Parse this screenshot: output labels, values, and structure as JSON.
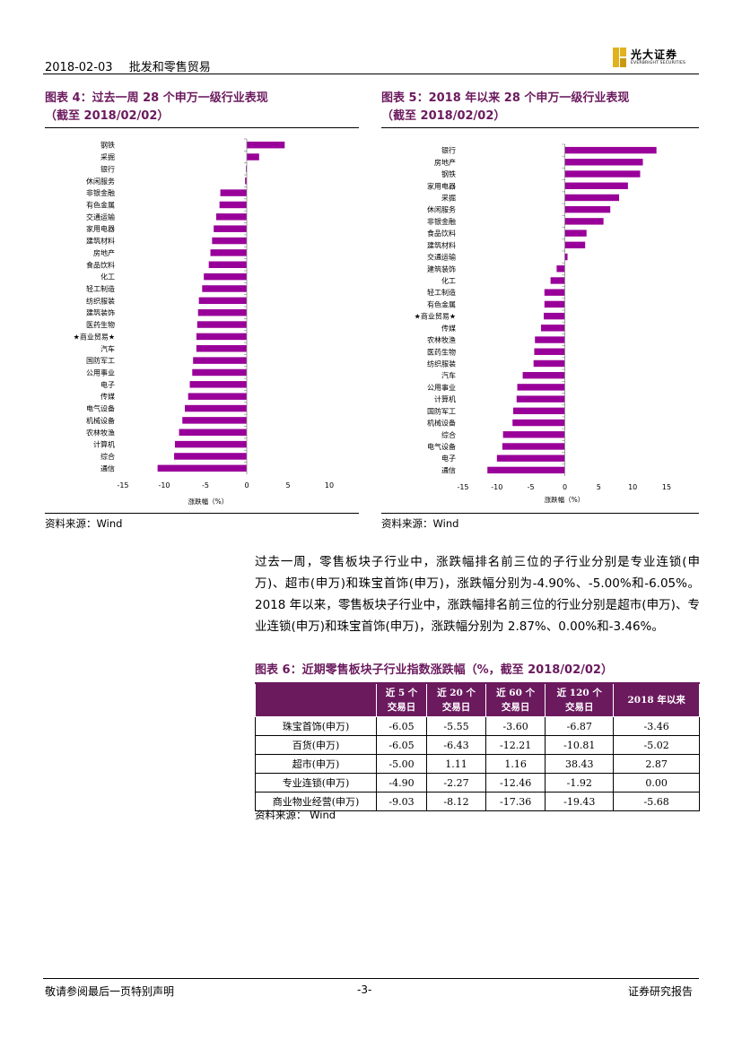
{
  "header": {
    "date": "2018-02-03",
    "sector": "批发和零售贸易",
    "logo_cn": "光大证券",
    "logo_en": "EVERBRIGHT SECURITIES"
  },
  "fig4": {
    "title_line1": "图表 4：过去一周 28 个申万一级行业表现",
    "title_line2": "（截至 2018/02/02）",
    "source": "资料来源：Wind"
  },
  "fig5": {
    "title_line1": "图表 5：2018 年以来 28 个申万一级行业表现",
    "title_line2": "（截至 2018/02/02）",
    "source": "资料来源：Wind"
  },
  "chart_data": [
    {
      "type": "bar",
      "orientation": "horizontal",
      "xlabel": "涨跌幅（%）",
      "xlim": [
        -15,
        10
      ],
      "xticks": [
        -15,
        -10,
        -5,
        0,
        5,
        10
      ],
      "color": "#990099",
      "categories": [
        "钢铁",
        "采掘",
        "银行",
        "休闲服务",
        "非银金融",
        "有色金属",
        "交通运输",
        "家用电器",
        "建筑材料",
        "房地产",
        "食品饮料",
        "化工",
        "轻工制造",
        "纺织服装",
        "建筑装饰",
        "医药生物",
        "★商业贸易★",
        "汽车",
        "国防军工",
        "公用事业",
        "电子",
        "传媒",
        "电气设备",
        "机械设备",
        "农林牧渔",
        "计算机",
        "综合",
        "通信"
      ],
      "values": [
        4.6,
        1.5,
        -0.1,
        -0.2,
        -3.2,
        -3.3,
        -3.7,
        -4.0,
        -4.2,
        -4.4,
        -4.6,
        -5.2,
        -5.4,
        -5.8,
        -5.9,
        -6.0,
        -6.1,
        -6.1,
        -6.5,
        -6.6,
        -6.9,
        -7.1,
        -7.5,
        -7.8,
        -8.2,
        -8.7,
        -8.8,
        -10.8
      ]
    },
    {
      "type": "bar",
      "orientation": "horizontal",
      "xlabel": "涨跌幅（%）",
      "xlim": [
        -15,
        15
      ],
      "xticks": [
        -15,
        -10,
        -5,
        0,
        5,
        10,
        15
      ],
      "color": "#990099",
      "categories": [
        "银行",
        "房地产",
        "钢铁",
        "家用电器",
        "采掘",
        "休闲服务",
        "非银金融",
        "食品饮料",
        "建筑材料",
        "交通运输",
        "建筑装饰",
        "化工",
        "轻工制造",
        "有色金属",
        "★商业贸易★",
        "传媒",
        "农林牧渔",
        "医药生物",
        "纺织服装",
        "汽车",
        "公用事业",
        "计算机",
        "国防军工",
        "机械设备",
        "综合",
        "电气设备",
        "电子",
        "通信"
      ],
      "values": [
        13.5,
        11.5,
        11.1,
        9.3,
        8.0,
        6.7,
        5.7,
        3.2,
        3.0,
        0.4,
        -1.2,
        -2.1,
        -3.0,
        -3.0,
        -3.1,
        -3.5,
        -4.4,
        -4.5,
        -4.6,
        -6.2,
        -7.0,
        -7.1,
        -7.6,
        -7.7,
        -9.1,
        -9.2,
        -10.0,
        -11.4
      ]
    }
  ],
  "paragraph": "过去一周，零售板块子行业中，涨跌幅排名前三位的子行业分别是专业连锁(申万)、超市(申万)和珠宝首饰(申万)，涨跌幅分别为-4.90%、-5.00%和-6.05%。2018 年以来，零售板块子行业中，涨跌幅排名前三位的行业分别是超市(申万)、专业连锁(申万)和珠宝首饰(申万)，涨跌幅分别为 2.87%、0.00%和-3.46%。",
  "table6": {
    "title": "图表 6：近期零售板块子行业指数涨跌幅（%，截至 2018/02/02）",
    "headers": [
      "",
      "近 5 个\n交易日",
      "近 20 个\n交易日",
      "近 60 个\n交易日",
      "近 120 个\n交易日",
      "2018 年以来"
    ],
    "rows": [
      [
        "珠宝首饰(申万)",
        "-6.05",
        "-5.55",
        "-3.60",
        "-6.87",
        "-3.46"
      ],
      [
        "百货(申万)",
        "-6.05",
        "-6.43",
        "-12.21",
        "-10.81",
        "-5.02"
      ],
      [
        "超市(申万)",
        "-5.00",
        "1.11",
        "1.16",
        "38.43",
        "2.87"
      ],
      [
        "专业连锁(申万)",
        "-4.90",
        "-2.27",
        "-12.46",
        "-1.92",
        "0.00"
      ],
      [
        "商业物业经营(申万)",
        "-9.03",
        "-8.12",
        "-17.36",
        "-19.43",
        "-5.68"
      ]
    ],
    "source": "资料来源：  Wind"
  },
  "footer": {
    "left": "敬请参阅最后一页特别声明",
    "center": "-3-",
    "right": "证券研究报告"
  }
}
